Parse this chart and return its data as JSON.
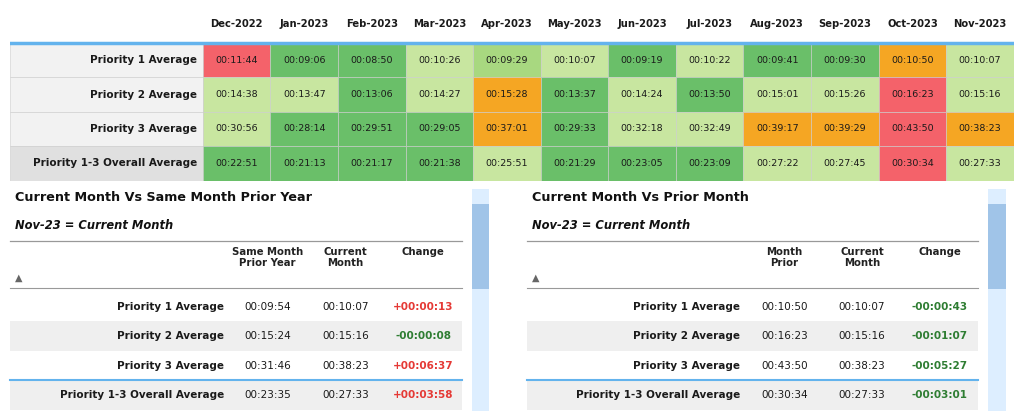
{
  "header_months": [
    "Dec-2022",
    "Jan-2023",
    "Feb-2023",
    "Mar-2023",
    "Apr-2023",
    "May-2023",
    "Jun-2023",
    "Jul-2023",
    "Aug-2023",
    "Sep-2023",
    "Oct-2023",
    "Nov-2023"
  ],
  "row_labels": [
    "Priority 1 Average",
    "Priority 2 Average",
    "Priority 3 Average",
    "Priority 1-3 Overall Average"
  ],
  "cell_values": [
    [
      "00:11:44",
      "00:09:06",
      "00:08:50",
      "00:10:26",
      "00:09:29",
      "00:10:07",
      "00:09:19",
      "00:10:22",
      "00:09:41",
      "00:09:30",
      "00:10:50",
      "00:10:07"
    ],
    [
      "00:14:38",
      "00:13:47",
      "00:13:06",
      "00:14:27",
      "00:15:28",
      "00:13:37",
      "00:14:24",
      "00:13:50",
      "00:15:01",
      "00:15:26",
      "00:16:23",
      "00:15:16"
    ],
    [
      "00:30:56",
      "00:28:14",
      "00:29:51",
      "00:29:05",
      "00:37:01",
      "00:29:33",
      "00:32:18",
      "00:32:49",
      "00:39:17",
      "00:39:29",
      "00:43:50",
      "00:38:23"
    ],
    [
      "00:22:51",
      "00:21:13",
      "00:21:17",
      "00:21:38",
      "00:25:51",
      "00:21:29",
      "00:23:05",
      "00:23:09",
      "00:27:22",
      "00:27:45",
      "00:30:34",
      "00:27:33"
    ]
  ],
  "cell_colors": [
    [
      "#f4626a",
      "#6abf69",
      "#6abf69",
      "#c8e6a0",
      "#a8d880",
      "#c8e6a0",
      "#6abf69",
      "#c8e6a0",
      "#6abf69",
      "#6abf69",
      "#f5a623",
      "#c8e6a0"
    ],
    [
      "#c8e6a0",
      "#c8e6a0",
      "#6abf69",
      "#c8e6a0",
      "#f5a623",
      "#6abf69",
      "#c8e6a0",
      "#6abf69",
      "#c8e6a0",
      "#c8e6a0",
      "#f4626a",
      "#c8e6a0"
    ],
    [
      "#c8e6a0",
      "#6abf69",
      "#6abf69",
      "#6abf69",
      "#f5a623",
      "#6abf69",
      "#c8e6a0",
      "#c8e6a0",
      "#f5a623",
      "#f5a623",
      "#f4626a",
      "#f5a623"
    ],
    [
      "#6abf69",
      "#6abf69",
      "#6abf69",
      "#6abf69",
      "#c8e6a0",
      "#6abf69",
      "#6abf69",
      "#6abf69",
      "#c8e6a0",
      "#c8e6a0",
      "#f4626a",
      "#c8e6a0"
    ]
  ],
  "left_panel_title": "Current Month Vs Same Month Prior Year",
  "left_panel_subtitle": "Nov-23 = Current Month",
  "left_col_headers": [
    "Same Month\nPrior Year",
    "Current\nMonth",
    "Change"
  ],
  "left_rows": [
    [
      "Priority 1 Average",
      "00:09:54",
      "00:10:07",
      "+00:00:13"
    ],
    [
      "Priority 2 Average",
      "00:15:24",
      "00:15:16",
      "-00:00:08"
    ],
    [
      "Priority 3 Average",
      "00:31:46",
      "00:38:23",
      "+00:06:37"
    ],
    [
      "Priority 1-3 Overall Average",
      "00:23:35",
      "00:27:33",
      "+00:03:58"
    ]
  ],
  "left_change_colors": [
    "#e53935",
    "#2e7d32",
    "#e53935",
    "#e53935"
  ],
  "right_panel_title": "Current Month Vs Prior Month",
  "right_panel_subtitle": "Nov-23 = Current Month",
  "right_col_headers": [
    "Month\nPrior",
    "Current\nMonth",
    "Change"
  ],
  "right_rows": [
    [
      "Priority 1 Average",
      "00:10:50",
      "00:10:07",
      "-00:00:43"
    ],
    [
      "Priority 2 Average",
      "00:16:23",
      "00:15:16",
      "-00:01:07"
    ],
    [
      "Priority 3 Average",
      "00:43:50",
      "00:38:23",
      "-00:05:27"
    ],
    [
      "Priority 1-3 Overall Average",
      "00:30:34",
      "00:27:33",
      "-00:03:01"
    ]
  ],
  "right_change_colors": [
    "#2e7d32",
    "#2e7d32",
    "#2e7d32",
    "#2e7d32"
  ],
  "header_line_color": "#63b3ed",
  "scrollbar_color": "#a0c4e8"
}
